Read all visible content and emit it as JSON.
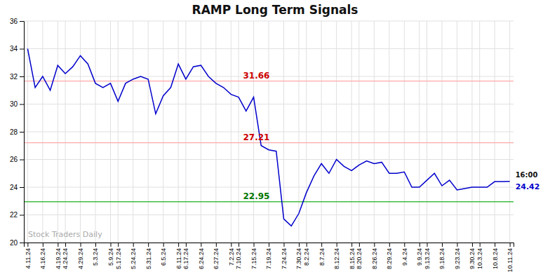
{
  "chart_data": {
    "type": "line",
    "title": "RAMP Long Term Signals",
    "color": "#0000cc",
    "grid": true,
    "ylim": [
      20,
      36
    ],
    "yticks": [
      20,
      22,
      24,
      26,
      28,
      30,
      32,
      34,
      36
    ],
    "categories": [
      "4.11.24",
      null,
      "4.16.24",
      null,
      "4.19.24",
      "4.24.24",
      null,
      "4.29.24",
      null,
      "5.3.24",
      null,
      "5.9.24",
      "5.17.24",
      null,
      "5.24.24",
      null,
      "5.31.24",
      null,
      "6.5.24",
      null,
      "6.11.24",
      "6.17.24",
      null,
      "6.24.24",
      null,
      "6.27.24",
      null,
      "7.2.24",
      "7.10.24",
      null,
      "7.15.24",
      null,
      "7.19.24",
      null,
      "7.24.24",
      null,
      "7.30.24",
      "8.2.24",
      null,
      "8.7.24",
      null,
      "8.12.24",
      null,
      "8.15.24",
      "8.20.24",
      null,
      "8.26.24",
      null,
      "8.29.24",
      null,
      "9.4.24",
      null,
      "9.9.24",
      "9.13.24",
      null,
      "9.18.24",
      null,
      "9.23.24",
      null,
      "9.30.24",
      "10.3.24",
      null,
      "10.8.24",
      null,
      "10.11.24"
    ],
    "values": [
      34.0,
      31.2,
      32.0,
      31.0,
      32.8,
      32.2,
      32.7,
      33.5,
      32.9,
      31.5,
      31.2,
      31.5,
      30.2,
      31.5,
      31.8,
      32.0,
      31.8,
      29.3,
      30.6,
      31.2,
      32.9,
      31.8,
      32.7,
      32.8,
      32.0,
      31.5,
      31.2,
      30.7,
      30.5,
      29.5,
      30.5,
      27.0,
      26.7,
      26.6,
      21.7,
      21.2,
      22.1,
      23.6,
      24.8,
      25.7,
      25.0,
      26.0,
      25.5,
      25.2,
      25.6,
      25.9,
      25.7,
      25.8,
      25.0,
      25.0,
      25.1,
      24.0,
      24.0,
      24.5,
      25.0,
      24.1,
      24.5,
      23.8,
      23.9,
      24.0,
      24.0,
      24.0,
      24.4,
      24.4,
      24.42
    ],
    "hlines": [
      {
        "value": 31.66,
        "label": "31.66",
        "color": "#ffaaaa",
        "label_color": "#cc0000"
      },
      {
        "value": 27.21,
        "label": "27.21",
        "color": "#ffaaaa",
        "label_color": "#cc0000"
      },
      {
        "value": 22.95,
        "label": "22.95",
        "color": "#44bb44",
        "label_color": "#007700"
      }
    ],
    "last_price": {
      "time": "16:00",
      "text": "24.42",
      "color": "#0000cc"
    },
    "watermark": "Stock Traders Daily"
  }
}
